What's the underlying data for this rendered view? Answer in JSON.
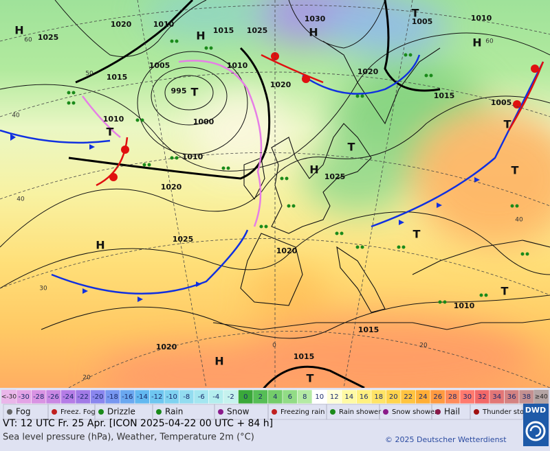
{
  "isobar_labels": [
    1020,
    1010,
    1015,
    1025,
    1030,
    1005,
    1010,
    1025,
    1005,
    1010,
    1020,
    1020,
    1015,
    995,
    1000,
    1010,
    1015,
    1005,
    1010,
    1025,
    1020,
    1025,
    1020,
    1010,
    1015,
    1020,
    1015
  ],
  "pressure_centers": [
    "H",
    "H",
    "H",
    "T",
    "H",
    "T",
    "T",
    "T",
    "H",
    "T",
    "H",
    "T",
    "T",
    "H",
    "T",
    "T"
  ],
  "grid_labels": [
    60,
    50,
    40,
    40,
    30,
    20,
    60,
    40,
    20,
    0
  ],
  "scale": {
    "low": "<-30",
    "high": "≥40",
    "values": [
      -30,
      -28,
      -26,
      -24,
      -22,
      -20,
      -18,
      -16,
      -14,
      -12,
      -10,
      -8,
      -6,
      -4,
      -2,
      0,
      2,
      4,
      6,
      8,
      10,
      12,
      14,
      16,
      18,
      20,
      22,
      24,
      26,
      28,
      30,
      32,
      34,
      36,
      38
    ],
    "colors": [
      "#e3a3e6",
      "#d993e3",
      "#c987e3",
      "#b57ce6",
      "#a17ae6",
      "#8a86ee",
      "#7797f0",
      "#6aa8f0",
      "#62b8f0",
      "#6ec6f0",
      "#7fd2f0",
      "#92dcf0",
      "#a4e6f0",
      "#b4eeee",
      "#c6f2ee",
      "#3aa83a",
      "#56be56",
      "#74cc6a",
      "#92dc86",
      "#b4eaa4",
      "#ffffff",
      "#ffffd6",
      "#fffaa4",
      "#fff080",
      "#ffe466",
      "#ffd44c",
      "#ffc440",
      "#ffae36",
      "#ff9a40",
      "#ff8a5a",
      "#ff7a6e",
      "#f26868",
      "#e27676",
      "#d48282",
      "#c49090"
    ],
    "high_color": "#b4a4a4",
    "low_color": "#eab6ea"
  },
  "weather_legend": [
    "Fog",
    "Freez. Fog",
    "Drizzle",
    "Rain",
    "Snow",
    "Freezing rain",
    "Rain shower",
    "Snow shower",
    "Hail",
    "Thunder storm"
  ],
  "footer": {
    "valid_time": "VT: 12 UTC Fr.  25 Apr. [ICON 2025-04-22  00 UTC + 84 h]",
    "subtitle": "Sea level pressure (hPa), Weather, Temperature 2m (°C)",
    "copyright": "© 2025 Deutscher Wetterdienst",
    "logo": "DWD"
  }
}
